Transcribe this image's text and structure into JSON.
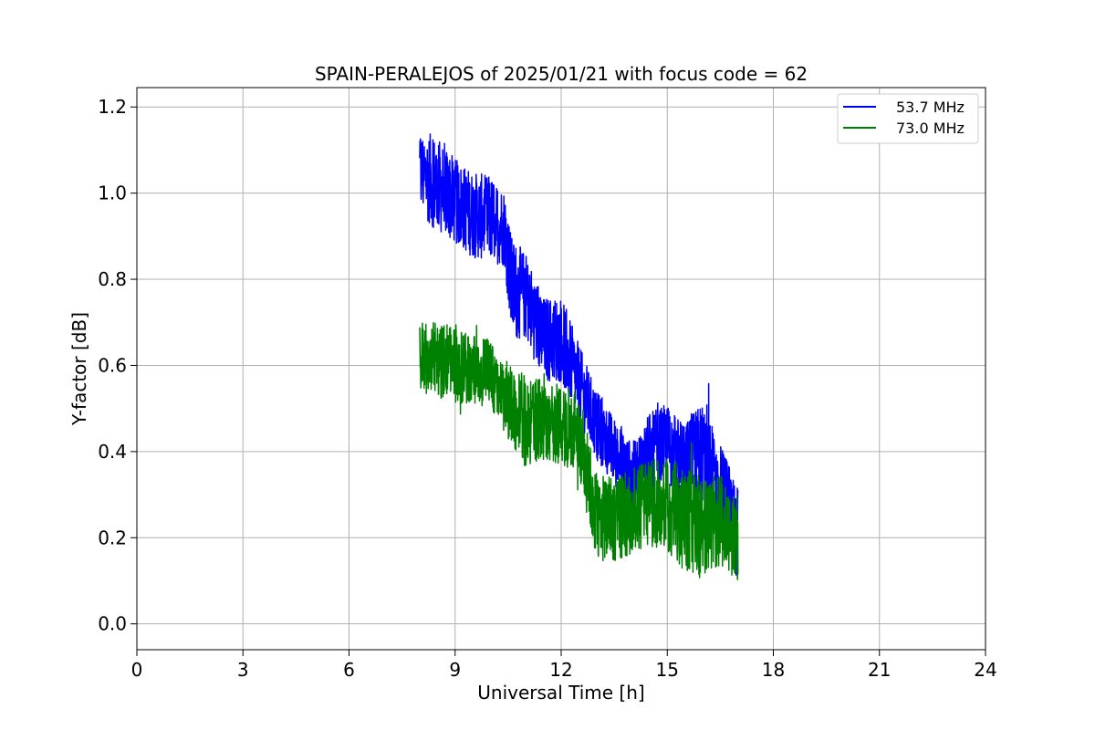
{
  "chart_data": {
    "type": "line",
    "title": "SPAIN-PERALEJOS of 2025/01/21 with focus code = 62",
    "xlabel": "Universal Time [h]",
    "ylabel": "Y-factor [dB]",
    "xlim": [
      0,
      24
    ],
    "ylim": [
      -0.06,
      1.245
    ],
    "xticks": [
      0,
      3,
      6,
      9,
      12,
      15,
      18,
      21,
      24
    ],
    "xtick_labels": [
      "0",
      "3",
      "6",
      "9",
      "12",
      "15",
      "18",
      "21",
      "24"
    ],
    "yticks": [
      0.0,
      0.2,
      0.4,
      0.6,
      0.8,
      1.0,
      1.2
    ],
    "ytick_labels": [
      "0.0",
      "0.2",
      "0.4",
      "0.6",
      "0.8",
      "1.0",
      "1.2"
    ],
    "grid": true,
    "legend_position": "top-right",
    "series": [
      {
        "name": "53.7 MHz",
        "color": "#0000ff",
        "x": [
          8.0,
          8.5,
          9.0,
          9.5,
          10.0,
          10.4,
          10.6,
          11.0,
          11.5,
          12.0,
          12.5,
          13.0,
          13.5,
          14.0,
          14.5,
          15.0,
          15.5,
          16.0,
          16.5,
          17.0
        ],
        "center": [
          1.05,
          1.02,
          0.98,
          0.95,
          0.94,
          0.92,
          0.78,
          0.76,
          0.66,
          0.66,
          0.56,
          0.46,
          0.4,
          0.34,
          0.4,
          0.42,
          0.36,
          0.4,
          0.32,
          0.22
        ],
        "spread": [
          0.1,
          0.11,
          0.1,
          0.1,
          0.1,
          0.09,
          0.12,
          0.1,
          0.1,
          0.1,
          0.09,
          0.08,
          0.08,
          0.08,
          0.09,
          0.09,
          0.1,
          0.12,
          0.1,
          0.1
        ]
      },
      {
        "name": "73.0 MHz",
        "color": "#008000",
        "x": [
          8.0,
          8.5,
          9.0,
          9.5,
          10.0,
          10.5,
          11.0,
          11.5,
          12.0,
          12.5,
          13.0,
          13.5,
          14.0,
          14.5,
          15.0,
          15.5,
          16.0,
          16.5,
          17.0
        ],
        "center": [
          0.62,
          0.61,
          0.6,
          0.59,
          0.58,
          0.52,
          0.46,
          0.48,
          0.46,
          0.44,
          0.25,
          0.24,
          0.26,
          0.28,
          0.28,
          0.24,
          0.22,
          0.24,
          0.2
        ],
        "spread": [
          0.08,
          0.09,
          0.09,
          0.08,
          0.08,
          0.09,
          0.1,
          0.1,
          0.09,
          0.1,
          0.1,
          0.1,
          0.1,
          0.1,
          0.11,
          0.12,
          0.12,
          0.11,
          0.1
        ]
      }
    ]
  }
}
